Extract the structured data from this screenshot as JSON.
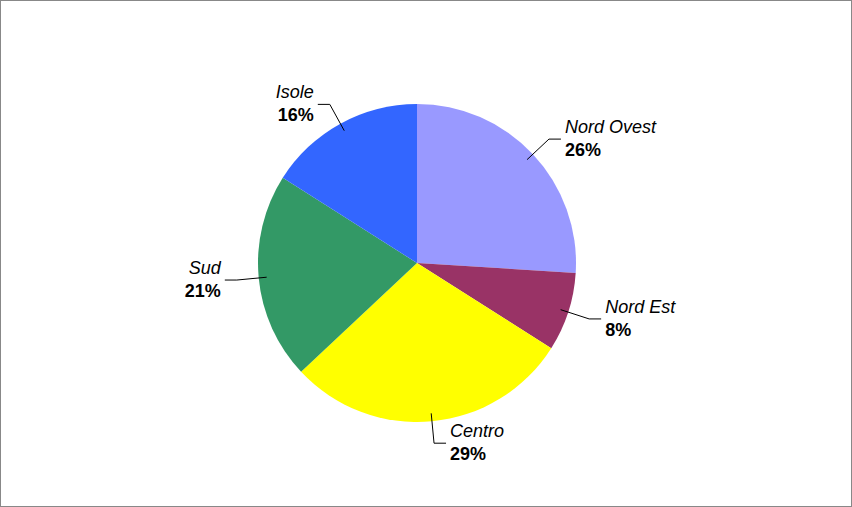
{
  "chart_data": {
    "type": "pie",
    "categories": [
      "Nord Ovest",
      "Nord Est",
      "Centro",
      "Sud",
      "Isole"
    ],
    "values": [
      26,
      8,
      29,
      21,
      16
    ],
    "value_labels": [
      "26%",
      "8%",
      "29%",
      "21%",
      "16%"
    ],
    "colors": [
      "#9999ff",
      "#993366",
      "#ffff00",
      "#339966",
      "#3366ff"
    ],
    "data_labels": true
  }
}
